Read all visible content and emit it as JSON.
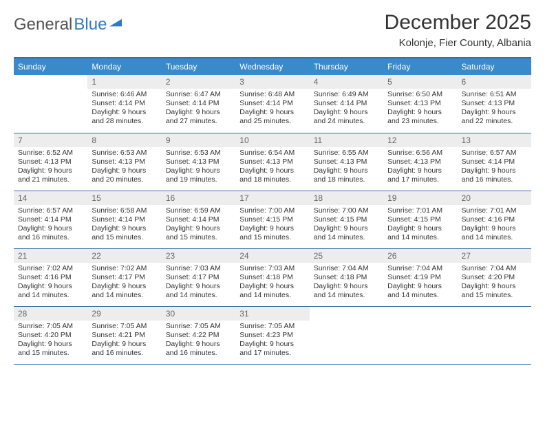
{
  "brand": {
    "part1": "General",
    "part2": "Blue"
  },
  "title": "December 2025",
  "location": "Kolonje, Fier County, Albania",
  "colors": {
    "header_bg": "#3a89c9",
    "header_text": "#ffffff",
    "rule": "#3a6ea5",
    "daynum_bg": "#ededed",
    "body_text": "#333333"
  },
  "day_headers": [
    "Sunday",
    "Monday",
    "Tuesday",
    "Wednesday",
    "Thursday",
    "Friday",
    "Saturday"
  ],
  "weeks": [
    [
      {
        "n": "",
        "sr": "",
        "ss": "",
        "dl": ""
      },
      {
        "n": "1",
        "sr": "Sunrise: 6:46 AM",
        "ss": "Sunset: 4:14 PM",
        "dl": "Daylight: 9 hours and 28 minutes."
      },
      {
        "n": "2",
        "sr": "Sunrise: 6:47 AM",
        "ss": "Sunset: 4:14 PM",
        "dl": "Daylight: 9 hours and 27 minutes."
      },
      {
        "n": "3",
        "sr": "Sunrise: 6:48 AM",
        "ss": "Sunset: 4:14 PM",
        "dl": "Daylight: 9 hours and 25 minutes."
      },
      {
        "n": "4",
        "sr": "Sunrise: 6:49 AM",
        "ss": "Sunset: 4:14 PM",
        "dl": "Daylight: 9 hours and 24 minutes."
      },
      {
        "n": "5",
        "sr": "Sunrise: 6:50 AM",
        "ss": "Sunset: 4:13 PM",
        "dl": "Daylight: 9 hours and 23 minutes."
      },
      {
        "n": "6",
        "sr": "Sunrise: 6:51 AM",
        "ss": "Sunset: 4:13 PM",
        "dl": "Daylight: 9 hours and 22 minutes."
      }
    ],
    [
      {
        "n": "7",
        "sr": "Sunrise: 6:52 AM",
        "ss": "Sunset: 4:13 PM",
        "dl": "Daylight: 9 hours and 21 minutes."
      },
      {
        "n": "8",
        "sr": "Sunrise: 6:53 AM",
        "ss": "Sunset: 4:13 PM",
        "dl": "Daylight: 9 hours and 20 minutes."
      },
      {
        "n": "9",
        "sr": "Sunrise: 6:53 AM",
        "ss": "Sunset: 4:13 PM",
        "dl": "Daylight: 9 hours and 19 minutes."
      },
      {
        "n": "10",
        "sr": "Sunrise: 6:54 AM",
        "ss": "Sunset: 4:13 PM",
        "dl": "Daylight: 9 hours and 18 minutes."
      },
      {
        "n": "11",
        "sr": "Sunrise: 6:55 AM",
        "ss": "Sunset: 4:13 PM",
        "dl": "Daylight: 9 hours and 18 minutes."
      },
      {
        "n": "12",
        "sr": "Sunrise: 6:56 AM",
        "ss": "Sunset: 4:13 PM",
        "dl": "Daylight: 9 hours and 17 minutes."
      },
      {
        "n": "13",
        "sr": "Sunrise: 6:57 AM",
        "ss": "Sunset: 4:14 PM",
        "dl": "Daylight: 9 hours and 16 minutes."
      }
    ],
    [
      {
        "n": "14",
        "sr": "Sunrise: 6:57 AM",
        "ss": "Sunset: 4:14 PM",
        "dl": "Daylight: 9 hours and 16 minutes."
      },
      {
        "n": "15",
        "sr": "Sunrise: 6:58 AM",
        "ss": "Sunset: 4:14 PM",
        "dl": "Daylight: 9 hours and 15 minutes."
      },
      {
        "n": "16",
        "sr": "Sunrise: 6:59 AM",
        "ss": "Sunset: 4:14 PM",
        "dl": "Daylight: 9 hours and 15 minutes."
      },
      {
        "n": "17",
        "sr": "Sunrise: 7:00 AM",
        "ss": "Sunset: 4:15 PM",
        "dl": "Daylight: 9 hours and 15 minutes."
      },
      {
        "n": "18",
        "sr": "Sunrise: 7:00 AM",
        "ss": "Sunset: 4:15 PM",
        "dl": "Daylight: 9 hours and 14 minutes."
      },
      {
        "n": "19",
        "sr": "Sunrise: 7:01 AM",
        "ss": "Sunset: 4:15 PM",
        "dl": "Daylight: 9 hours and 14 minutes."
      },
      {
        "n": "20",
        "sr": "Sunrise: 7:01 AM",
        "ss": "Sunset: 4:16 PM",
        "dl": "Daylight: 9 hours and 14 minutes."
      }
    ],
    [
      {
        "n": "21",
        "sr": "Sunrise: 7:02 AM",
        "ss": "Sunset: 4:16 PM",
        "dl": "Daylight: 9 hours and 14 minutes."
      },
      {
        "n": "22",
        "sr": "Sunrise: 7:02 AM",
        "ss": "Sunset: 4:17 PM",
        "dl": "Daylight: 9 hours and 14 minutes."
      },
      {
        "n": "23",
        "sr": "Sunrise: 7:03 AM",
        "ss": "Sunset: 4:17 PM",
        "dl": "Daylight: 9 hours and 14 minutes."
      },
      {
        "n": "24",
        "sr": "Sunrise: 7:03 AM",
        "ss": "Sunset: 4:18 PM",
        "dl": "Daylight: 9 hours and 14 minutes."
      },
      {
        "n": "25",
        "sr": "Sunrise: 7:04 AM",
        "ss": "Sunset: 4:18 PM",
        "dl": "Daylight: 9 hours and 14 minutes."
      },
      {
        "n": "26",
        "sr": "Sunrise: 7:04 AM",
        "ss": "Sunset: 4:19 PM",
        "dl": "Daylight: 9 hours and 14 minutes."
      },
      {
        "n": "27",
        "sr": "Sunrise: 7:04 AM",
        "ss": "Sunset: 4:20 PM",
        "dl": "Daylight: 9 hours and 15 minutes."
      }
    ],
    [
      {
        "n": "28",
        "sr": "Sunrise: 7:05 AM",
        "ss": "Sunset: 4:20 PM",
        "dl": "Daylight: 9 hours and 15 minutes."
      },
      {
        "n": "29",
        "sr": "Sunrise: 7:05 AM",
        "ss": "Sunset: 4:21 PM",
        "dl": "Daylight: 9 hours and 16 minutes."
      },
      {
        "n": "30",
        "sr": "Sunrise: 7:05 AM",
        "ss": "Sunset: 4:22 PM",
        "dl": "Daylight: 9 hours and 16 minutes."
      },
      {
        "n": "31",
        "sr": "Sunrise: 7:05 AM",
        "ss": "Sunset: 4:23 PM",
        "dl": "Daylight: 9 hours and 17 minutes."
      },
      {
        "n": "",
        "sr": "",
        "ss": "",
        "dl": ""
      },
      {
        "n": "",
        "sr": "",
        "ss": "",
        "dl": ""
      },
      {
        "n": "",
        "sr": "",
        "ss": "",
        "dl": ""
      }
    ]
  ]
}
